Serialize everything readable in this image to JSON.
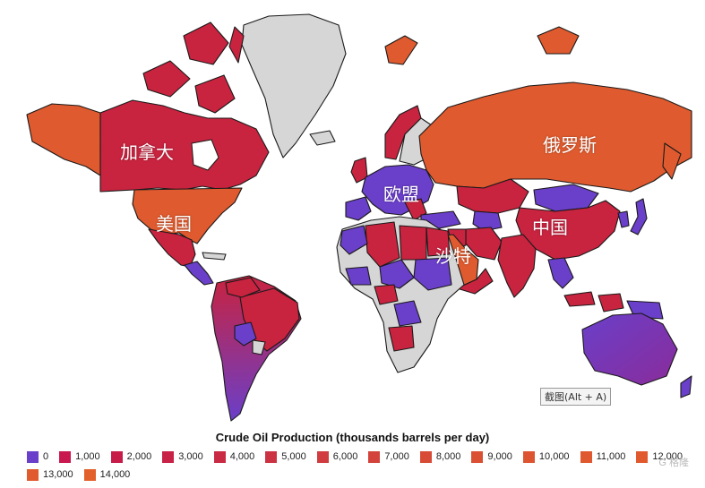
{
  "labels": {
    "canada": "加拿大",
    "usa": "美国",
    "russia": "俄罗斯",
    "eu": "欧盟",
    "china": "中国",
    "saudi": "沙特"
  },
  "tooltip": "截图(Alt + A)",
  "legend": {
    "title": "Crude Oil Production (thousands barrels per day)",
    "items": [
      {
        "label": "0",
        "color": "#6a3fc9"
      },
      {
        "label": "1,000",
        "color": "#c8184f"
      },
      {
        "label": "2,000",
        "color": "#c71c4a"
      },
      {
        "label": "3,000",
        "color": "#c82246"
      },
      {
        "label": "4,000",
        "color": "#c92a44"
      },
      {
        "label": "5,000",
        "color": "#cc3342"
      },
      {
        "label": "6,000",
        "color": "#d03c3f"
      },
      {
        "label": "7,000",
        "color": "#d4433b"
      },
      {
        "label": "8,000",
        "color": "#d84b37"
      },
      {
        "label": "9,000",
        "color": "#da5033"
      },
      {
        "label": "10,000",
        "color": "#dd5530"
      },
      {
        "label": "11,000",
        "color": "#df582f"
      },
      {
        "label": "12,000",
        "color": "#e05a2e"
      },
      {
        "label": "13,000",
        "color": "#e05b2d"
      },
      {
        "label": "14,000",
        "color": "#e2602c"
      }
    ]
  },
  "colors": {
    "orange": "#df5a2e",
    "red": "#c8233f",
    "purple": "#6a3fc9",
    "gray": "#d6d6d6"
  },
  "watermark": "G 格隆"
}
